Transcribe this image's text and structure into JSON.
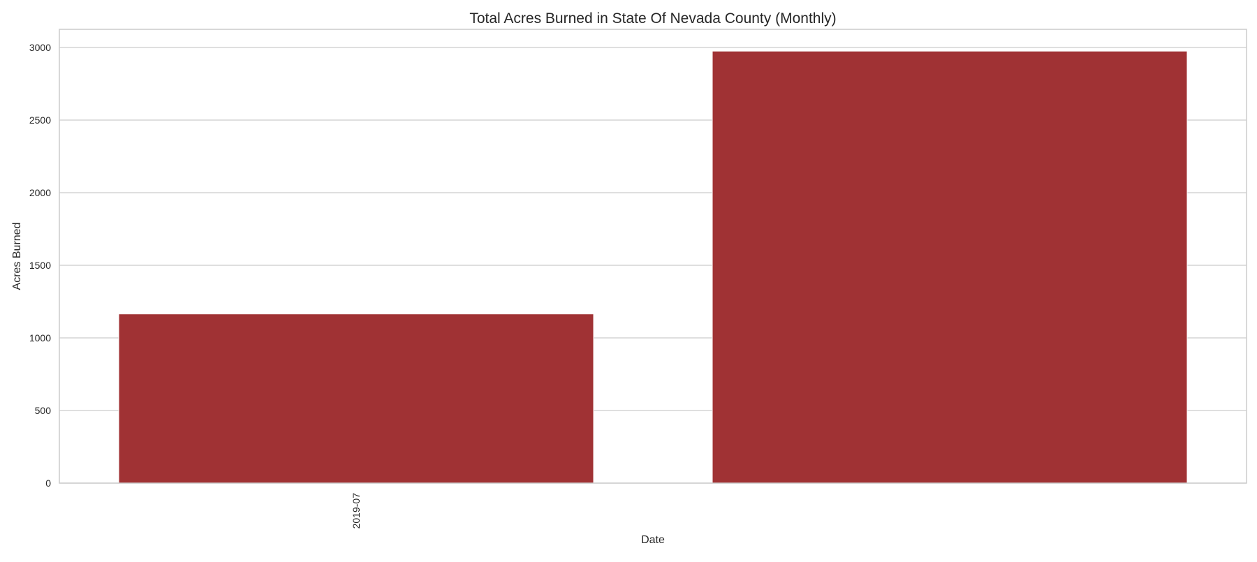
{
  "chart_data": {
    "type": "bar",
    "title": "Total Acres Burned in State Of Nevada County (Monthly)",
    "xlabel": "Date",
    "ylabel": "Acres Burned",
    "categories": [
      "2019-07",
      ""
    ],
    "x_tick_labels": [
      "2019-07"
    ],
    "values": [
      1165,
      2975
    ],
    "ylim": [
      0,
      3125
    ],
    "yticks": [
      0,
      500,
      1000,
      1500,
      2000,
      2500,
      3000
    ],
    "grid": true,
    "legend": "none",
    "bar_color": "#A03234",
    "grid_color": "#CCCCCC",
    "spine_color": "#CCCCCC",
    "x_tick_rotation": "vertical"
  }
}
